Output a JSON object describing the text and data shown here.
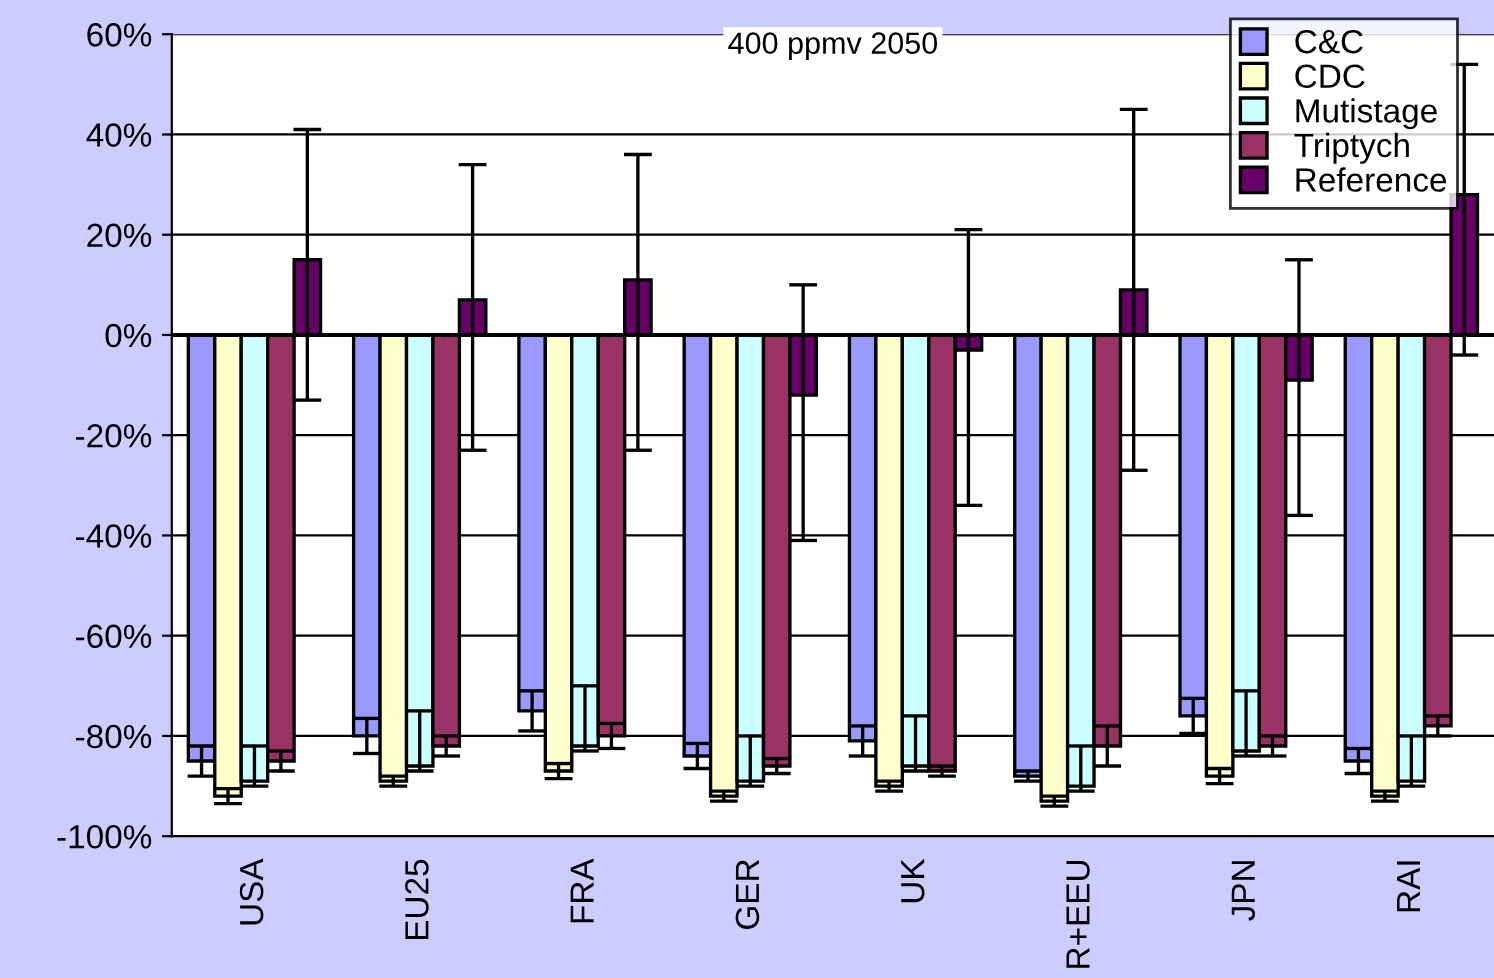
{
  "chart_data": {
    "type": "bar",
    "title": "400 ppmv 2050",
    "categories": [
      "USA",
      "EU25",
      "FRA",
      "GER",
      "UK",
      "R+EEU",
      "JPN",
      "RAI"
    ],
    "series": [
      {
        "name": "C&C",
        "color": "#9999ff",
        "values": [
          -85,
          -80,
          -75,
          -84,
          -81,
          -88,
          -76,
          -85
        ],
        "errors": [
          3,
          3.5,
          4,
          2.5,
          3,
          1,
          3.5,
          2.5
        ]
      },
      {
        "name": "CDC",
        "color": "#ffffcc",
        "values": [
          -92,
          -89,
          -87,
          -92,
          -90,
          -93,
          -88,
          -92
        ],
        "errors": [
          1.5,
          1,
          1.5,
          1,
          1,
          1,
          1.5,
          1
        ]
      },
      {
        "name": "Mutistage",
        "color": "#ccffff",
        "values": [
          -89,
          -86,
          -82,
          -89,
          -86,
          -90,
          -83,
          -89
        ],
        "errors": [
          [
            -90,
            -82
          ],
          [
            -87,
            -75
          ],
          [
            -83,
            -70
          ],
          [
            -90,
            -80
          ],
          [
            -87,
            -76
          ],
          [
            -91,
            -82
          ],
          [
            -84,
            -71
          ],
          [
            -90,
            -80
          ]
        ]
      },
      {
        "name": "Triptych",
        "color": "#993366",
        "values": [
          -85,
          -82,
          -80,
          -86,
          -87,
          -82,
          -82,
          -78
        ],
        "errors": [
          2,
          2,
          2.5,
          1.5,
          1,
          4,
          2,
          2
        ]
      },
      {
        "name": "Reference",
        "color": "#660066",
        "values": [
          15,
          7,
          11,
          -12,
          -3,
          9,
          -9,
          28
        ],
        "errors": [
          [
            -13,
            41
          ],
          [
            -23,
            34
          ],
          [
            -23,
            36
          ],
          [
            -41,
            10
          ],
          [
            -34,
            21
          ],
          [
            -27,
            45
          ],
          [
            -36,
            15
          ],
          [
            -4,
            54
          ]
        ]
      }
    ],
    "ylim": [
      -100,
      60
    ],
    "yticks": [
      {
        "value": -100,
        "label": "-100%"
      },
      {
        "value": -80,
        "label": "-80%"
      },
      {
        "value": -60,
        "label": "-60%"
      },
      {
        "value": -40,
        "label": "-40%"
      },
      {
        "value": -20,
        "label": "-20%"
      },
      {
        "value": 0,
        "label": "0%"
      },
      {
        "value": 20,
        "label": "20%"
      },
      {
        "value": 40,
        "label": "40%"
      },
      {
        "value": 60,
        "label": "60%"
      }
    ],
    "grid": "y",
    "legend": "top right"
  }
}
